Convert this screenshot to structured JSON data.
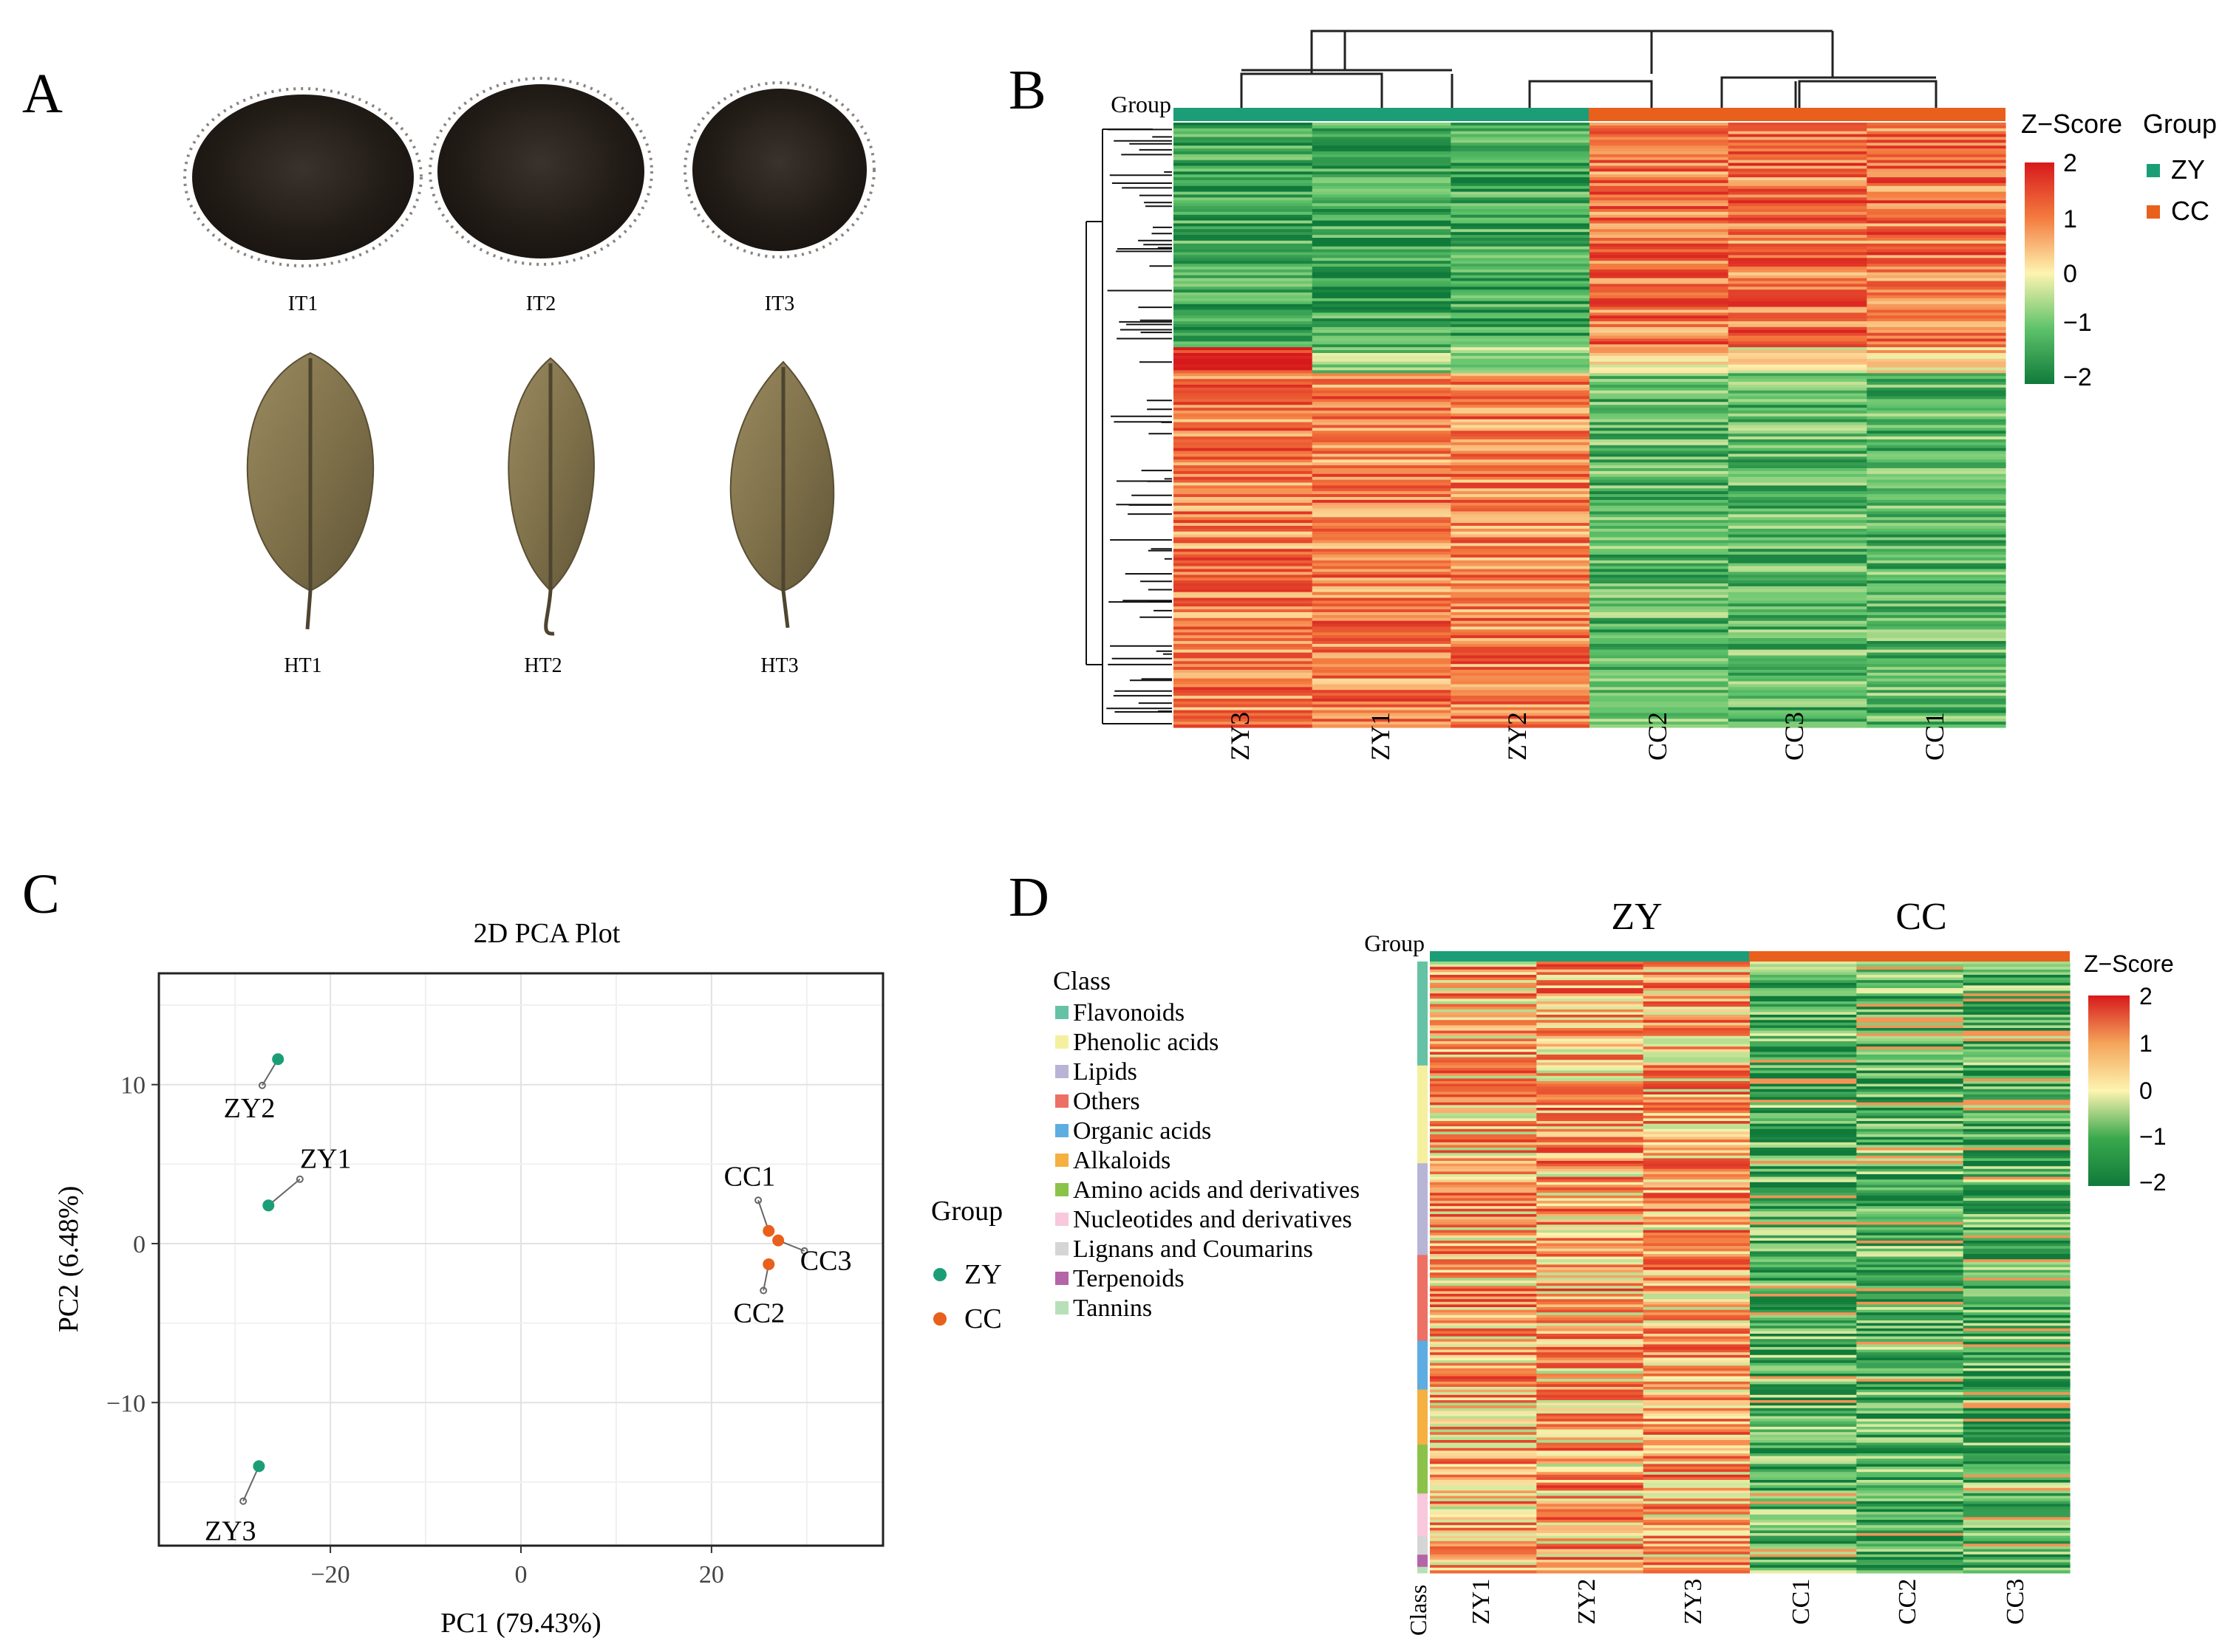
{
  "panelA": {
    "letter": "A",
    "powder_labels": [
      "IT1",
      "IT2",
      "IT3"
    ],
    "leaf_labels": [
      "HT1",
      "HT2",
      "HT3"
    ]
  },
  "panelB": {
    "letter": "B",
    "group_label": "Group",
    "zscore_title": "Z−Score",
    "zscore_ticks": [
      "2",
      "1",
      "0",
      "−1",
      "−2"
    ],
    "legend_title": "Group",
    "legend_items": [
      {
        "label": "ZY",
        "color": "#1b9e77"
      },
      {
        "label": "CC",
        "color": "#e8601c"
      }
    ],
    "samples": [
      "ZY3",
      "ZY1",
      "ZY2",
      "CC2",
      "CC3",
      "CC1"
    ]
  },
  "panelC": {
    "letter": "C",
    "chart_data": {
      "type": "scatter",
      "title": "2D PCA Plot",
      "xlabel": "PC1 (79.43%)",
      "ylabel": "PC2 (6.48%)",
      "xlim": [
        -38,
        38
      ],
      "ylim": [
        -19,
        17
      ],
      "xticks": [
        -20,
        0,
        20
      ],
      "yticks": [
        -10,
        0,
        10
      ],
      "xtick_labels": [
        "−20",
        "0",
        "20"
      ],
      "ytick_labels": [
        "−10",
        "0",
        "10"
      ],
      "grid": true,
      "legend_title": "Group",
      "series": [
        {
          "name": "ZY",
          "color": "#1b9e77",
          "points": [
            {
              "label": "ZY1",
              "x": -26.5,
              "y": 2.4
            },
            {
              "label": "ZY2",
              "x": -25.5,
              "y": 11.6
            },
            {
              "label": "ZY3",
              "x": -27.5,
              "y": -14.0
            }
          ]
        },
        {
          "name": "CC",
          "color": "#e8601c",
          "points": [
            {
              "label": "CC1",
              "x": 26.0,
              "y": 0.8
            },
            {
              "label": "CC2",
              "x": 26.0,
              "y": -1.3
            },
            {
              "label": "CC3",
              "x": 27.0,
              "y": 0.2
            }
          ]
        }
      ]
    }
  },
  "panelD": {
    "letter": "D",
    "group_label": "Group",
    "group_titles": [
      "ZY",
      "CC"
    ],
    "zscore_title": "Z−Score",
    "zscore_ticks": [
      "2",
      "1",
      "0",
      "−1",
      "−2"
    ],
    "class_title": "Class",
    "class_items": [
      {
        "label": "Flavonoids",
        "color": "#66c2a5"
      },
      {
        "label": "Phenolic acids",
        "color": "#f5f0a0"
      },
      {
        "label": "Lipids",
        "color": "#b8b4d6"
      },
      {
        "label": "Others",
        "color": "#ec7063"
      },
      {
        "label": "Organic acids",
        "color": "#5dade2"
      },
      {
        "label": "Alkaloids",
        "color": "#f5b041"
      },
      {
        "label": "Amino acids and derivatives",
        "color": "#8bc34a"
      },
      {
        "label": "Nucleotides and derivatives",
        "color": "#f8c8dc"
      },
      {
        "label": "Lignans and Coumarins",
        "color": "#d5d5d5"
      },
      {
        "label": "Terpenoids",
        "color": "#b564a8"
      },
      {
        "label": "Tannins",
        "color": "#b8e0b8"
      }
    ],
    "class_axis_label": "Class",
    "samples": [
      "ZY1",
      "ZY2",
      "ZY3",
      "CC1",
      "CC2",
      "CC3"
    ]
  },
  "colors": {
    "zy": "#1b9e77",
    "cc": "#e8601c",
    "heat_low": "#1a8f3a",
    "heat_mid": "#fdf4b0",
    "heat_high": "#d7191c"
  }
}
